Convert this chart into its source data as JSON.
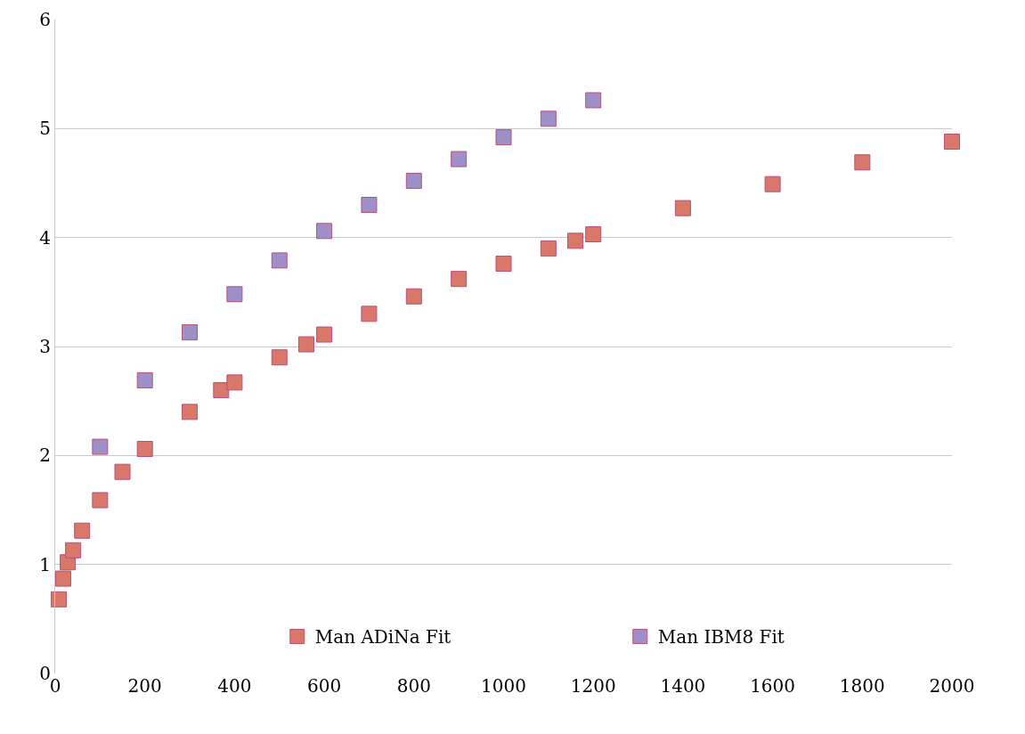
{
  "chart_data": {
    "type": "scatter",
    "marker": "square",
    "grid": "y",
    "legend": "bottom",
    "xlim": [
      0,
      2000
    ],
    "xticks": [
      0,
      200,
      400,
      600,
      800,
      1000,
      1200,
      1400,
      1600,
      1800,
      2000
    ],
    "ylim": [
      0,
      6
    ],
    "yticks": [
      0,
      1,
      2,
      3,
      4,
      5,
      6
    ],
    "series": [
      {
        "name": "Man ADiNa Fit",
        "color": "#d9776a",
        "x": [
          8,
          18,
          28,
          40,
          60,
          100,
          150,
          200,
          300,
          370,
          400,
          500,
          560,
          600,
          700,
          800,
          900,
          1000,
          1100,
          1160,
          1200,
          1400,
          1600,
          1800,
          2000
        ],
        "values": [
          0.68,
          0.87,
          1.02,
          1.13,
          1.31,
          1.59,
          1.85,
          2.06,
          2.4,
          2.6,
          2.67,
          2.9,
          3.02,
          3.11,
          3.3,
          3.46,
          3.62,
          3.76,
          3.9,
          3.97,
          4.03,
          4.27,
          4.49,
          4.69,
          4.88
        ]
      },
      {
        "name": "Man IBM8 Fit",
        "color": "#9e8fc8",
        "x": [
          100,
          200,
          300,
          400,
          500,
          600,
          700,
          800,
          900,
          1000,
          1100,
          1200
        ],
        "values": [
          2.08,
          2.69,
          3.13,
          3.48,
          3.79,
          4.06,
          4.3,
          4.52,
          4.72,
          4.92,
          5.09,
          5.26
        ]
      }
    ]
  }
}
